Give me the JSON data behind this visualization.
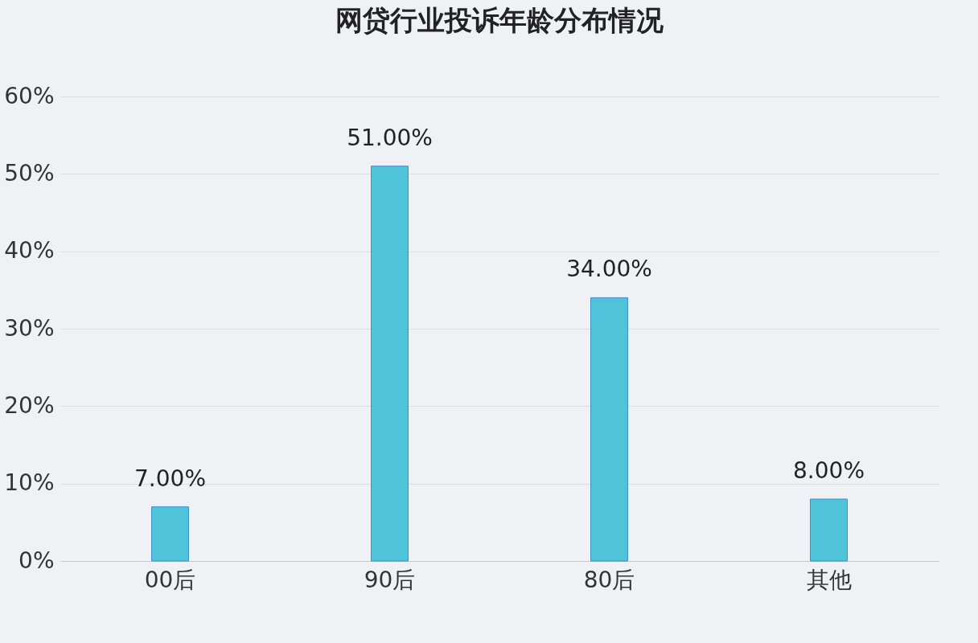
{
  "chart_data": {
    "type": "bar",
    "title": "网贷行业投诉年龄分布情况",
    "categories": [
      "00后",
      "90后",
      "80后",
      "其他"
    ],
    "values": [
      7,
      51,
      34,
      8
    ],
    "value_labels": [
      "7.00%",
      "51.00%",
      "34.00%",
      "8.00%"
    ],
    "color": "#4fc4d8",
    "ylim": [
      0,
      60
    ],
    "yticks": [
      {
        "value": 0,
        "label": "0%"
      },
      {
        "value": 10,
        "label": "10%"
      },
      {
        "value": 20,
        "label": "20%"
      },
      {
        "value": 30,
        "label": "30%"
      },
      {
        "value": 40,
        "label": "40%"
      },
      {
        "value": 50,
        "label": "50%"
      },
      {
        "value": 60,
        "label": "60%"
      }
    ],
    "grid": "y"
  }
}
